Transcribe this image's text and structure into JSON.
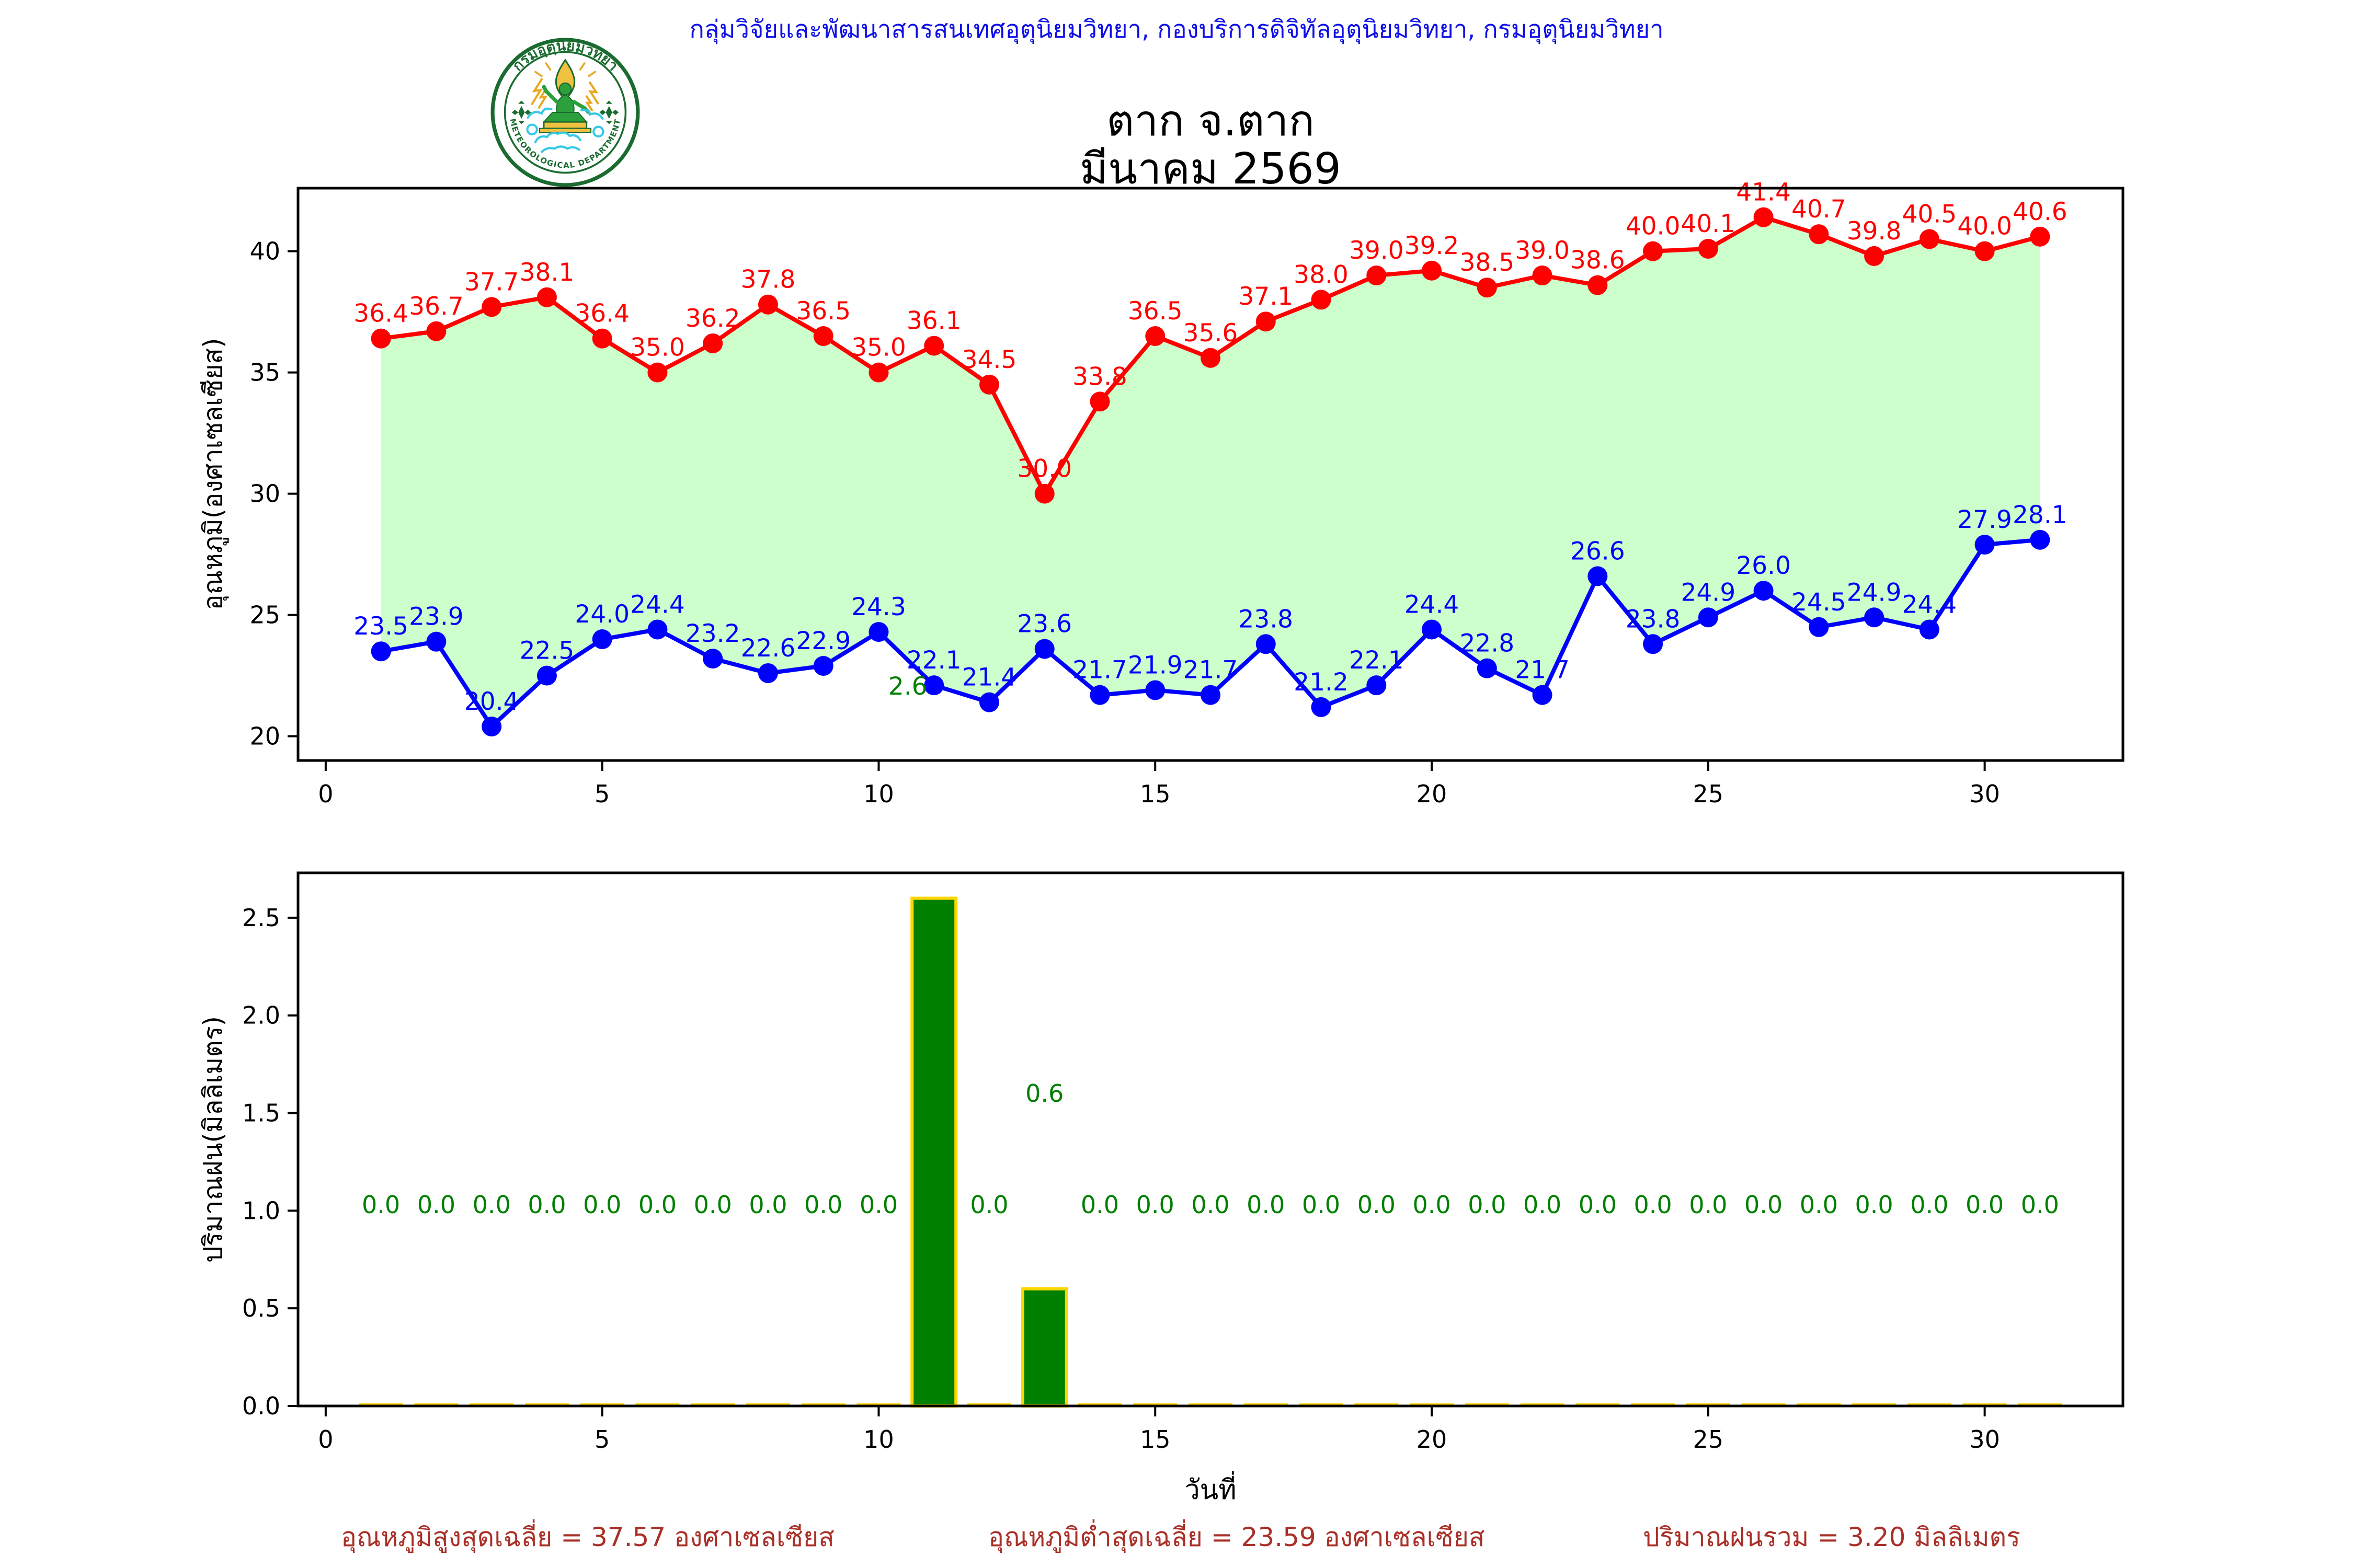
{
  "header": {
    "agency_line": "กลุ่มวิจัยและพัฒนาสารสนเทศอุตุนิยมวิทยา, กองบริการดิจิทัลอุตุนิยมวิทยา, กรมอุตุนิยมวิทยา"
  },
  "logo": {
    "top_text": "กรมอุตุนิยมวิทยา",
    "bottom_text": "METEOROLOGICAL DEPARTMENT"
  },
  "title": {
    "line1": "ตาก จ.ตาก",
    "line2": "มีนาคม 2569"
  },
  "colors": {
    "header_blue": "#0f0fe8",
    "max_line": "#ff0000",
    "min_line": "#0000ff",
    "band_fill": "#ccffcc",
    "bar_fill": "#008000",
    "bar_edge": "#ffd700",
    "rain_label": "#008000",
    "footer_text": "#a93028",
    "axis_black": "#000000"
  },
  "chart_data": [
    {
      "type": "line",
      "title": "ตาก จ.ตาก มีนาคม 2569",
      "xlabel": "",
      "ylabel": "อุณหภูมิ(องศาเซลเซียส)",
      "x": [
        1,
        2,
        3,
        4,
        5,
        6,
        7,
        8,
        9,
        10,
        11,
        12,
        13,
        14,
        15,
        16,
        17,
        18,
        19,
        20,
        21,
        22,
        23,
        24,
        25,
        26,
        27,
        28,
        29,
        30,
        31
      ],
      "series": [
        {
          "name": "max_temperature",
          "color": "#ff0000",
          "values": [
            36.4,
            36.7,
            37.7,
            38.1,
            36.4,
            35.0,
            36.2,
            37.8,
            36.5,
            35.0,
            36.1,
            34.5,
            30.0,
            33.8,
            36.5,
            35.6,
            37.1,
            38.0,
            39.0,
            39.2,
            38.5,
            39.0,
            38.6,
            40.0,
            40.1,
            41.4,
            40.7,
            39.8,
            40.5,
            40.0,
            40.6
          ]
        },
        {
          "name": "min_temperature",
          "color": "#0000ff",
          "values": [
            23.5,
            23.9,
            20.4,
            22.5,
            24.0,
            24.4,
            23.2,
            22.6,
            22.9,
            24.3,
            22.1,
            21.4,
            23.6,
            21.7,
            21.9,
            21.7,
            23.8,
            21.2,
            22.1,
            24.4,
            22.8,
            21.7,
            26.6,
            23.8,
            24.9,
            26.0,
            24.5,
            24.9,
            24.4,
            27.9,
            28.1
          ]
        }
      ],
      "fill_between_color": "#ccffcc",
      "xlim": [
        -0.5,
        32.5
      ],
      "ylim": [
        19.0,
        42.6
      ],
      "xticks": [
        0,
        5,
        10,
        15,
        20,
        25,
        30
      ],
      "yticks": [
        20,
        25,
        30,
        35,
        40
      ],
      "grid": false,
      "legend": "none",
      "stray_label": {
        "text": "2.6",
        "color": "#008000",
        "day": 11,
        "note": "rain value printed inside temperature chart"
      }
    },
    {
      "type": "bar",
      "xlabel": "วันที่",
      "ylabel": "ปริมาณฝน(มิลลิเมตร)",
      "x": [
        1,
        2,
        3,
        4,
        5,
        6,
        7,
        8,
        9,
        10,
        11,
        12,
        13,
        14,
        15,
        16,
        17,
        18,
        19,
        20,
        21,
        22,
        23,
        24,
        25,
        26,
        27,
        28,
        29,
        30,
        31
      ],
      "values": [
        0.0,
        0.0,
        0.0,
        0.0,
        0.0,
        0.0,
        0.0,
        0.0,
        0.0,
        0.0,
        2.6,
        0.0,
        0.6,
        0.0,
        0.0,
        0.0,
        0.0,
        0.0,
        0.0,
        0.0,
        0.0,
        0.0,
        0.0,
        0.0,
        0.0,
        0.0,
        0.0,
        0.0,
        0.0,
        0.0,
        0.0
      ],
      "value_labels": [
        "0.0",
        "0.0",
        "0.0",
        "0.0",
        "0.0",
        "0.0",
        "0.0",
        "0.0",
        "0.0",
        "0.0",
        "",
        "0.0",
        "0.6",
        "0.0",
        "0.0",
        "0.0",
        "0.0",
        "0.0",
        "0.0",
        "0.0",
        "0.0",
        "0.0",
        "0.0",
        "0.0",
        "0.0",
        "0.0",
        "0.0",
        "0.0",
        "0.0",
        "0.0",
        "0.0"
      ],
      "bar_color": "#008000",
      "bar_edge_color": "#ffd700",
      "label_color": "#008000",
      "xlim": [
        -0.5,
        32.5
      ],
      "ylim": [
        0,
        2.73
      ],
      "xticks": [
        0,
        5,
        10,
        15,
        20,
        25,
        30
      ],
      "yticks": [
        0.0,
        0.5,
        1.0,
        1.5,
        2.0,
        2.5
      ],
      "grid": false,
      "legend": "none"
    }
  ],
  "footer": {
    "max_avg": "อุณหภูมิสูงสุดเฉลี่ย = 37.57 องศาเซลเซียส",
    "min_avg": "อุณหภูมิต่ำสุดเฉลี่ย = 23.59 องศาเซลเซียส",
    "rain_total": "ปริมาณฝนรวม = 3.20 มิลลิเมตร"
  }
}
